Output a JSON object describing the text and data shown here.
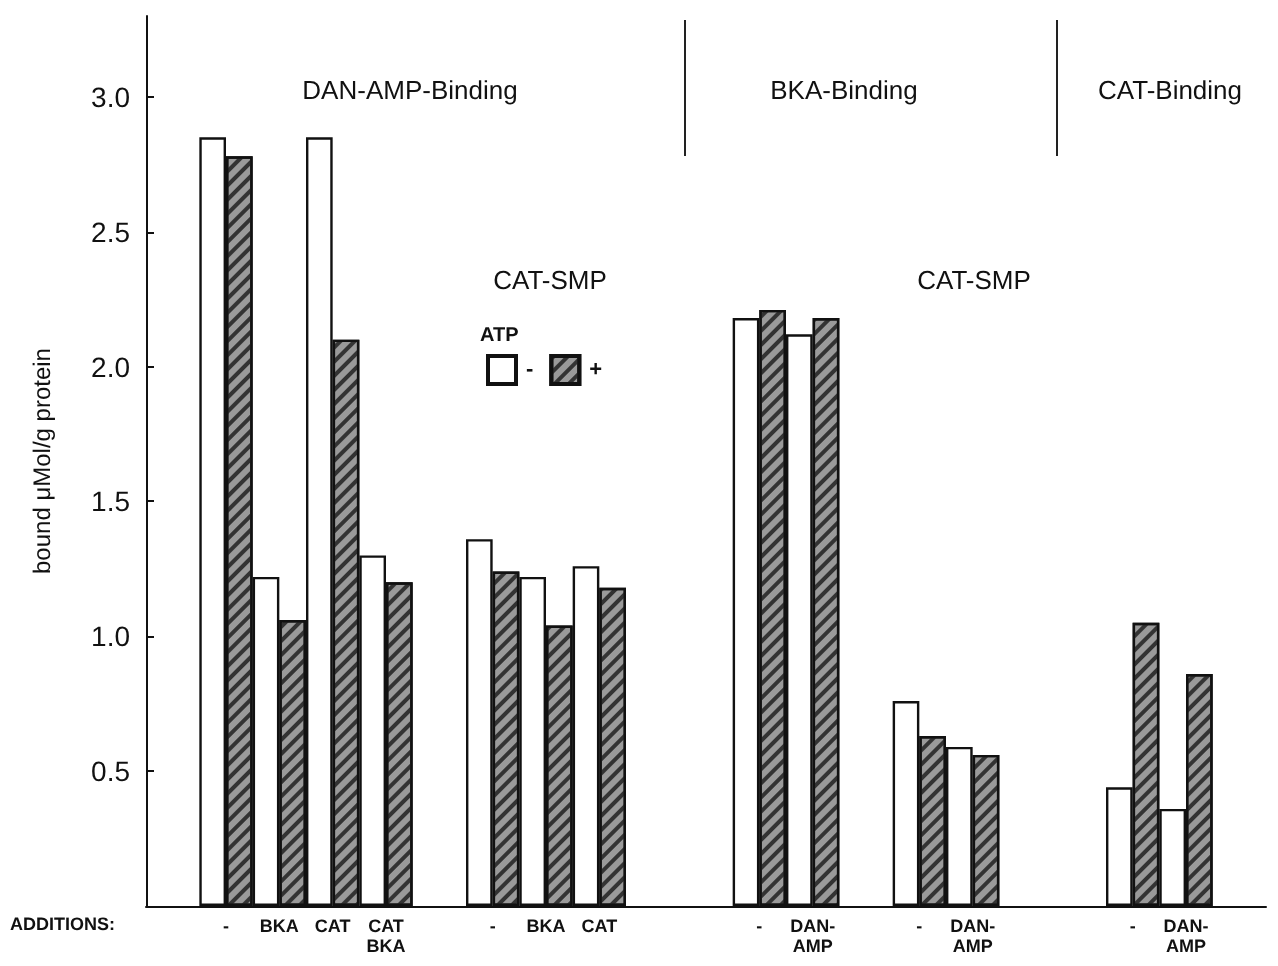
{
  "chart_data": {
    "type": "bar",
    "ylabel": "bound μMol/g protein",
    "legend_title": "ATP",
    "legend": "top",
    "grid": false,
    "categories": [
      null,
      "-",
      "BKA",
      "CAT",
      "CAT\nBKA",
      null,
      "-",
      "BKA",
      "CAT",
      null,
      null,
      "-",
      "DAN-\nAMP",
      null,
      "-",
      "DAN-\nAMP",
      null,
      null,
      "-",
      "DAN-\nAMP",
      null
    ],
    "series": [
      {
        "name": "-",
        "color": "#ffffff",
        "values": [
          null,
          2.85,
          1.22,
          2.85,
          1.3,
          null,
          1.36,
          1.22,
          1.26,
          null,
          null,
          2.18,
          2.12,
          null,
          0.76,
          0.59,
          null,
          null,
          0.44,
          0.36,
          null
        ]
      },
      {
        "name": "+",
        "color": "#9a9a9a",
        "values": [
          null,
          2.78,
          1.06,
          2.1,
          1.2,
          null,
          1.24,
          1.04,
          1.18,
          null,
          null,
          2.21,
          2.18,
          null,
          0.63,
          0.56,
          null,
          null,
          1.05,
          0.86,
          null
        ]
      }
    ],
    "ylim": [
      0,
      3.3
    ],
    "yticks": [
      {
        "value": 0.5,
        "label": "0.5"
      },
      {
        "value": 1,
        "label": "1.0"
      },
      {
        "value": 1.5,
        "label": "1.5"
      },
      {
        "value": 2,
        "label": "2.0"
      },
      {
        "value": 2.5,
        "label": "2.5"
      },
      {
        "value": 3,
        "label": "3.0"
      }
    ],
    "annotations": [
      "DAN-AMP-Binding",
      "BKA-Binding",
      "CAT-Binding",
      "CAT-SMP",
      "CAT-SMP",
      "ADDITIONS:"
    ]
  }
}
